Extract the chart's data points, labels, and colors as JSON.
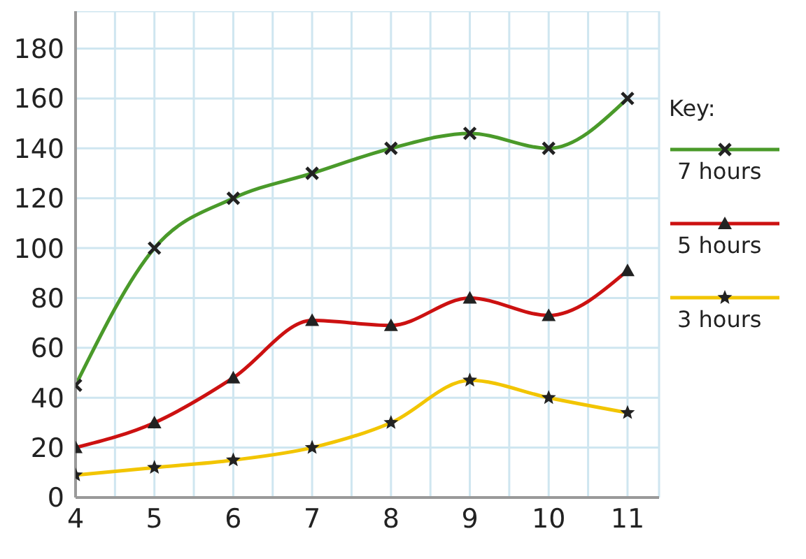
{
  "chart_data": {
    "type": "line",
    "legend_title": "Key:",
    "legend": "right",
    "grid": true,
    "line_style": "solid",
    "x": [
      4,
      5,
      6,
      7,
      8,
      9,
      10,
      11
    ],
    "xlim": [
      4,
      11.4
    ],
    "xticks": [
      4,
      {
        "value": 4.5,
        "label": null
      },
      5,
      {
        "value": 5.5,
        "label": null
      },
      6,
      {
        "value": 6.5,
        "label": null
      },
      7,
      {
        "value": 7.5,
        "label": null
      },
      8,
      {
        "value": 8.5,
        "label": null
      },
      9,
      {
        "value": 9.5,
        "label": null
      },
      10,
      {
        "value": 10.5,
        "label": null
      },
      11
    ],
    "ylim": [
      0,
      195
    ],
    "yticks": [
      0,
      20,
      40,
      60,
      80,
      100,
      120,
      140,
      160,
      180
    ],
    "series": [
      {
        "name": "7 hours",
        "color": "#4a9a2a",
        "marker": "cross",
        "values": [
          45,
          100,
          120,
          130,
          140,
          146,
          140,
          160
        ]
      },
      {
        "name": "5 hours",
        "color": "#cc1111",
        "marker": "triangle",
        "values": [
          20,
          30,
          48,
          71,
          69,
          80,
          73,
          91
        ]
      },
      {
        "name": "3 hours",
        "color": "#f2c500",
        "marker": "star",
        "values": [
          9,
          12,
          15,
          20,
          30,
          47,
          40,
          34
        ]
      }
    ]
  }
}
